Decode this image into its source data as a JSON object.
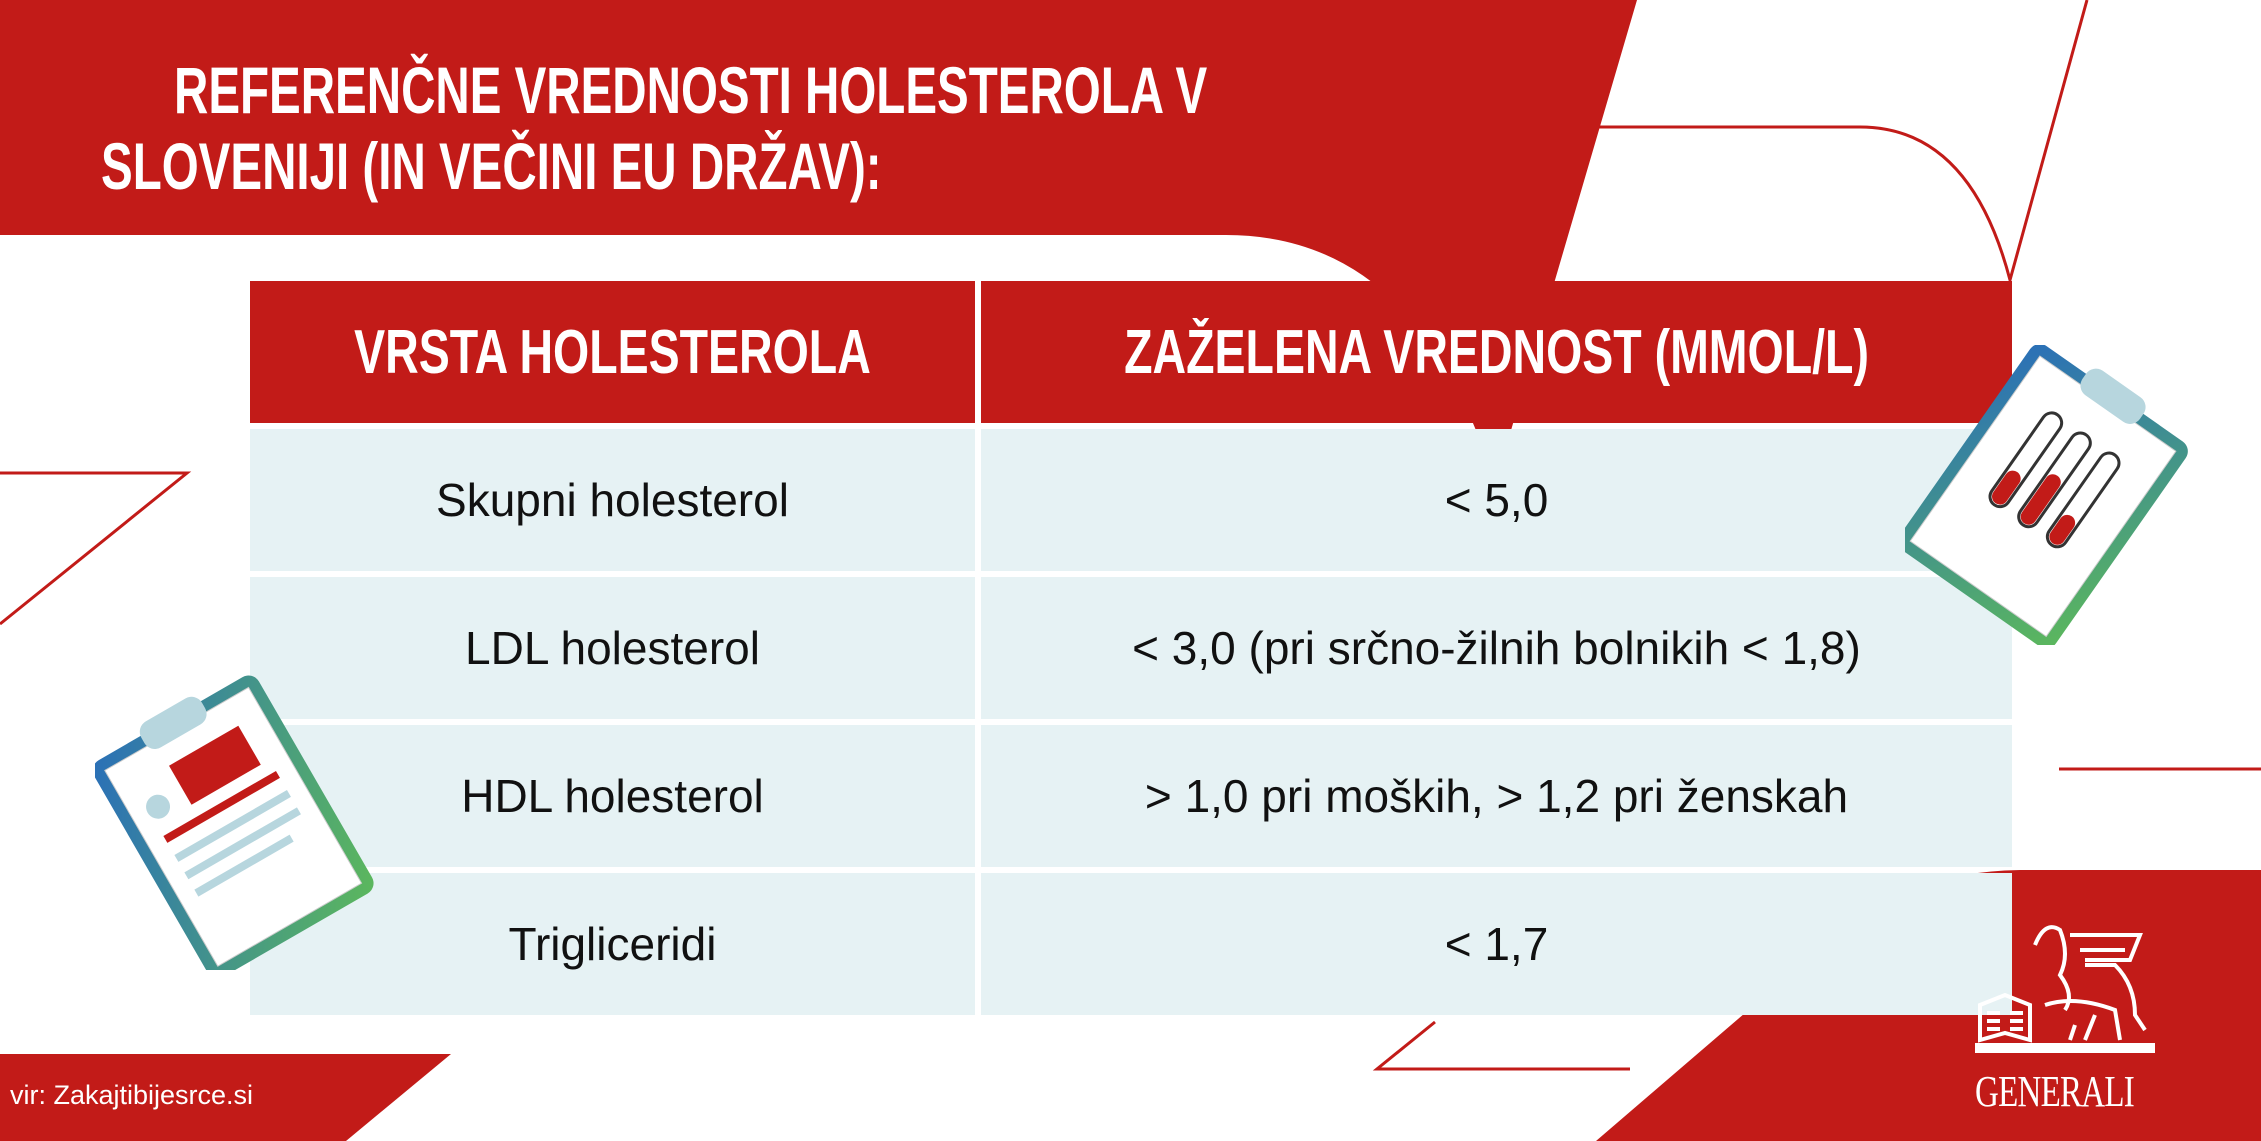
{
  "title": {
    "line1": "REFERENČNE VREDNOSTI HOLESTEROLA V",
    "line2": "SLOVENIJI (IN VEČINI EU DRŽAV):"
  },
  "table": {
    "headers": [
      "VRSTA HOLESTEROLA",
      "ZAŽELENA VREDNOST (MMOL/L)"
    ],
    "rows": [
      [
        "Skupni holesterol",
        "< 5,0"
      ],
      [
        "LDL holesterol",
        "< 3,0 (pri srčno-žilnih bolnikih < 1,8)"
      ],
      [
        "HDL holesterol",
        "> 1,0 pri moških, > 1,2 pri ženskah"
      ],
      [
        "Trigliceridi",
        "< 1,7"
      ]
    ]
  },
  "source": "vir: Zakajtibijesrce.si",
  "logo": {
    "text": "GENERALI",
    "icon": "winged-lion-icon"
  },
  "colors": {
    "brand_red": "#c21b18",
    "row_bg": "#e6f2f4",
    "text": "#111111"
  }
}
